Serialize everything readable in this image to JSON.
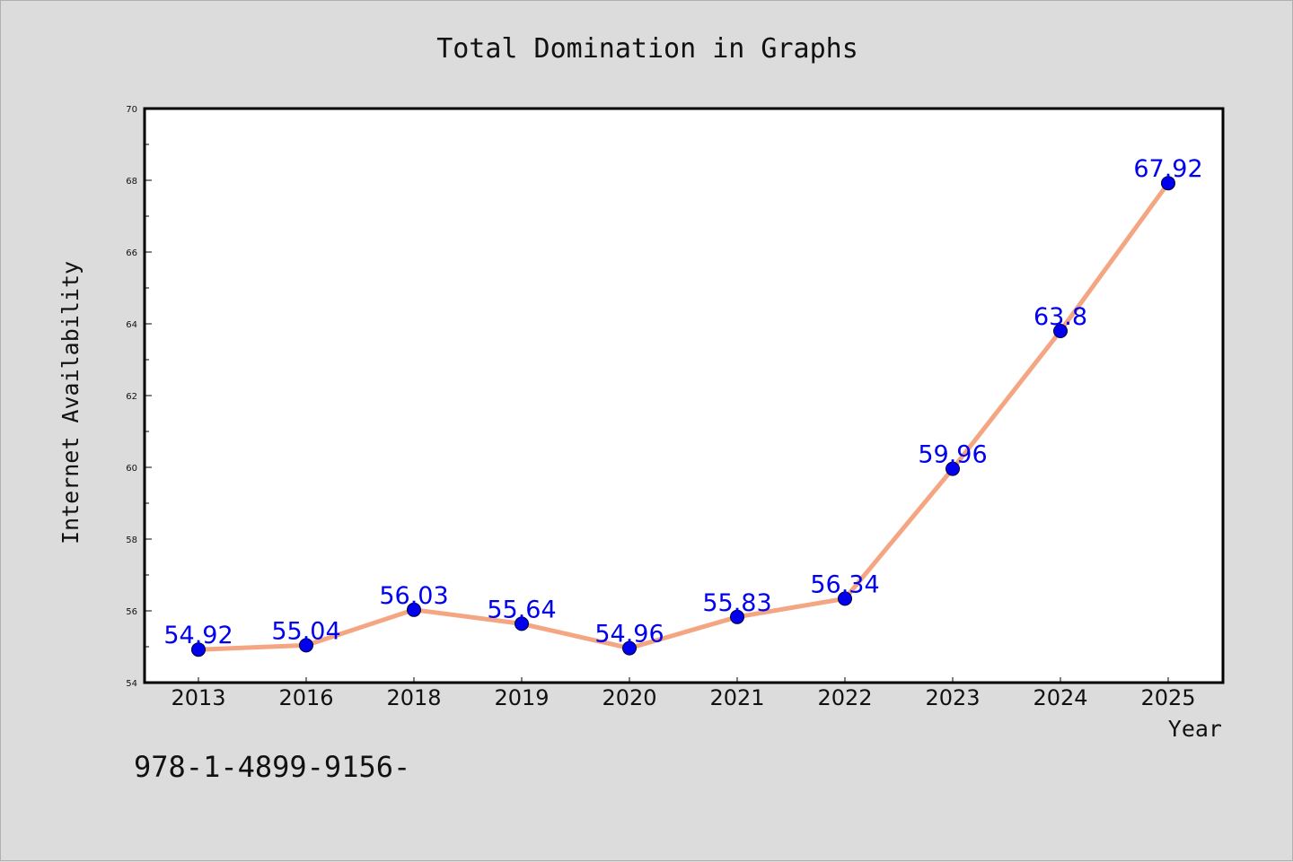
{
  "chart_data": {
    "type": "line",
    "title": "Total Domination in Graphs",
    "xlabel": "Year",
    "ylabel": "Internet Availability",
    "categories": [
      "2013",
      "2016",
      "2018",
      "2019",
      "2020",
      "2021",
      "2022",
      "2023",
      "2024",
      "2025"
    ],
    "series": [
      {
        "values": [
          54.92,
          55.04,
          56.03,
          55.64,
          54.96,
          55.83,
          56.34,
          59.96,
          63.8,
          67.92
        ],
        "labels": [
          "54.92",
          "55.04",
          "56.03",
          "55.64",
          "54.96",
          "55.83",
          "56.34",
          "59.96",
          "63.8",
          "67.92"
        ],
        "line_color": "#f4a582",
        "marker_color": "#0000ee",
        "label_color": "#0000ee"
      }
    ],
    "ylim": [
      54,
      70
    ],
    "yticks": [
      "54",
      "56",
      "58",
      "60",
      "62",
      "64",
      "66",
      "68",
      "70"
    ],
    "grid": false,
    "legend": "none"
  },
  "footer": {
    "text": "978-1-4899-9156-"
  }
}
